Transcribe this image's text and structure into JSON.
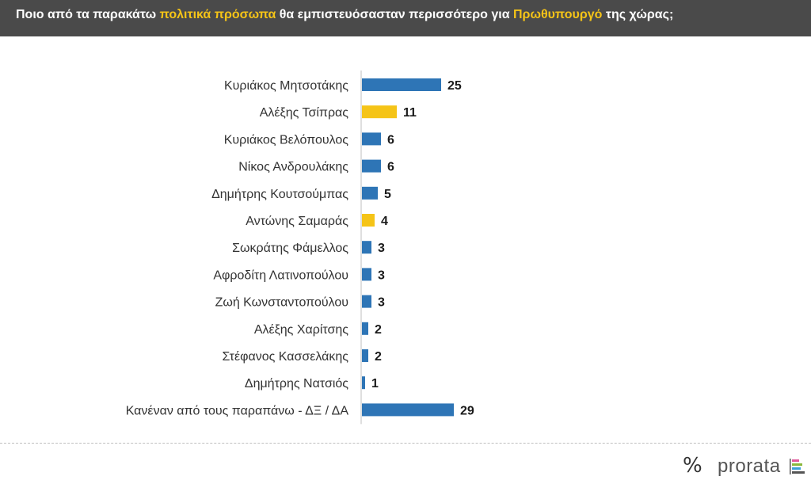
{
  "header": {
    "part1": "Ποιο από τα παρακάτω ",
    "highlight1": "πολιτικά πρόσωπα",
    "part2": " θα εμπιστευόσασταν περισσότερο για ",
    "highlight2": "Πρωθυπουργό",
    "part3": " της χώρας;"
  },
  "colors": {
    "header_bg": "#4a4a4a",
    "highlight": "#f5c417",
    "bar_blue": "#2e75b6",
    "bar_yellow": "#f5c417"
  },
  "chart_data": {
    "type": "bar",
    "orientation": "horizontal",
    "title": "",
    "xlabel": "",
    "ylabel": "",
    "grid": false,
    "categories": [
      "Κυριάκος Μητσοτάκης",
      "Αλέξης Τσίπρας",
      "Κυριάκος Βελόπουλος",
      "Νίκος Ανδρουλάκης",
      "Δημήτρης Κουτσούμπας",
      "Αντώνης Σαμαράς",
      "Σωκράτης Φάμελλος",
      "Αφροδίτη Λατινοπούλου",
      "Ζωή Κωνσταντοπούλου",
      "Αλέξης Χαρίτσης",
      "Στέφανος Κασσελάκης",
      "Δημήτρης Νατσιός",
      "Κανέναν από τους παραπάνω - ΔΞ / ΔΑ"
    ],
    "values": [
      25,
      11,
      6,
      6,
      5,
      4,
      3,
      3,
      3,
      2,
      2,
      1,
      29
    ],
    "bar_colors": [
      "#2e75b6",
      "#f5c417",
      "#2e75b6",
      "#2e75b6",
      "#2e75b6",
      "#f5c417",
      "#2e75b6",
      "#2e75b6",
      "#2e75b6",
      "#2e75b6",
      "#2e75b6",
      "#2e75b6",
      "#2e75b6"
    ]
  },
  "logo": {
    "symbol": "%",
    "name": "prorata",
    "bar_colors": [
      "#e05a9c",
      "#8ab83c",
      "#3aa0d8",
      "#555555"
    ]
  }
}
